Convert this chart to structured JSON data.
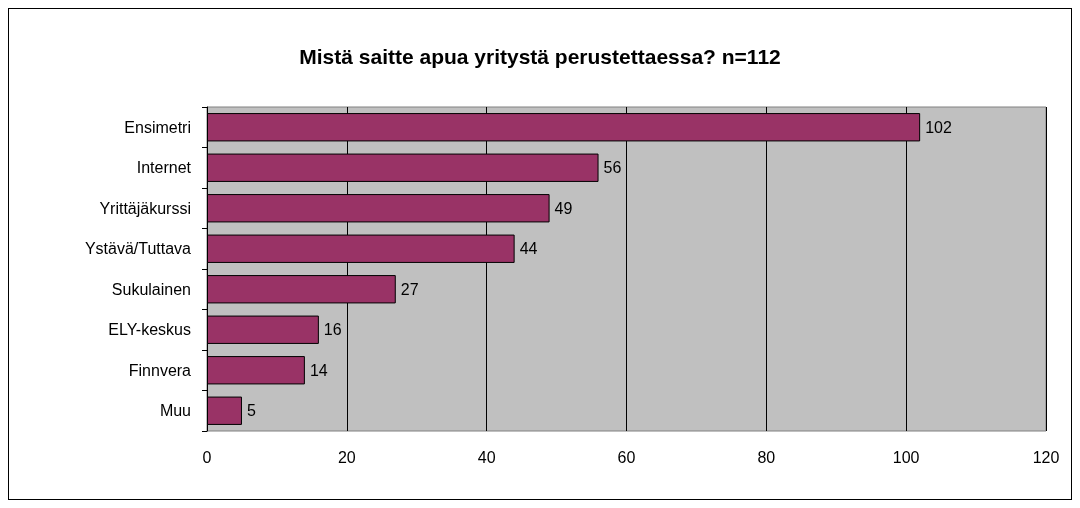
{
  "chart_data": {
    "type": "bar",
    "orientation": "horizontal",
    "title": "Mistä saitte apua yritystä perustettaessa? n=112",
    "categories": [
      "Ensimetri",
      "Internet",
      "Yrittäjäkurssi",
      "Ystävä/Tuttava",
      "Sukulainen",
      "ELY-keskus",
      "Finnvera",
      "Muu"
    ],
    "values": [
      102,
      56,
      49,
      44,
      27,
      16,
      14,
      5
    ],
    "color": "#993366",
    "xlim": [
      0,
      120
    ],
    "xticks": [
      0,
      20,
      40,
      60,
      80,
      100,
      120
    ],
    "grid": "x",
    "data_labels": true
  }
}
